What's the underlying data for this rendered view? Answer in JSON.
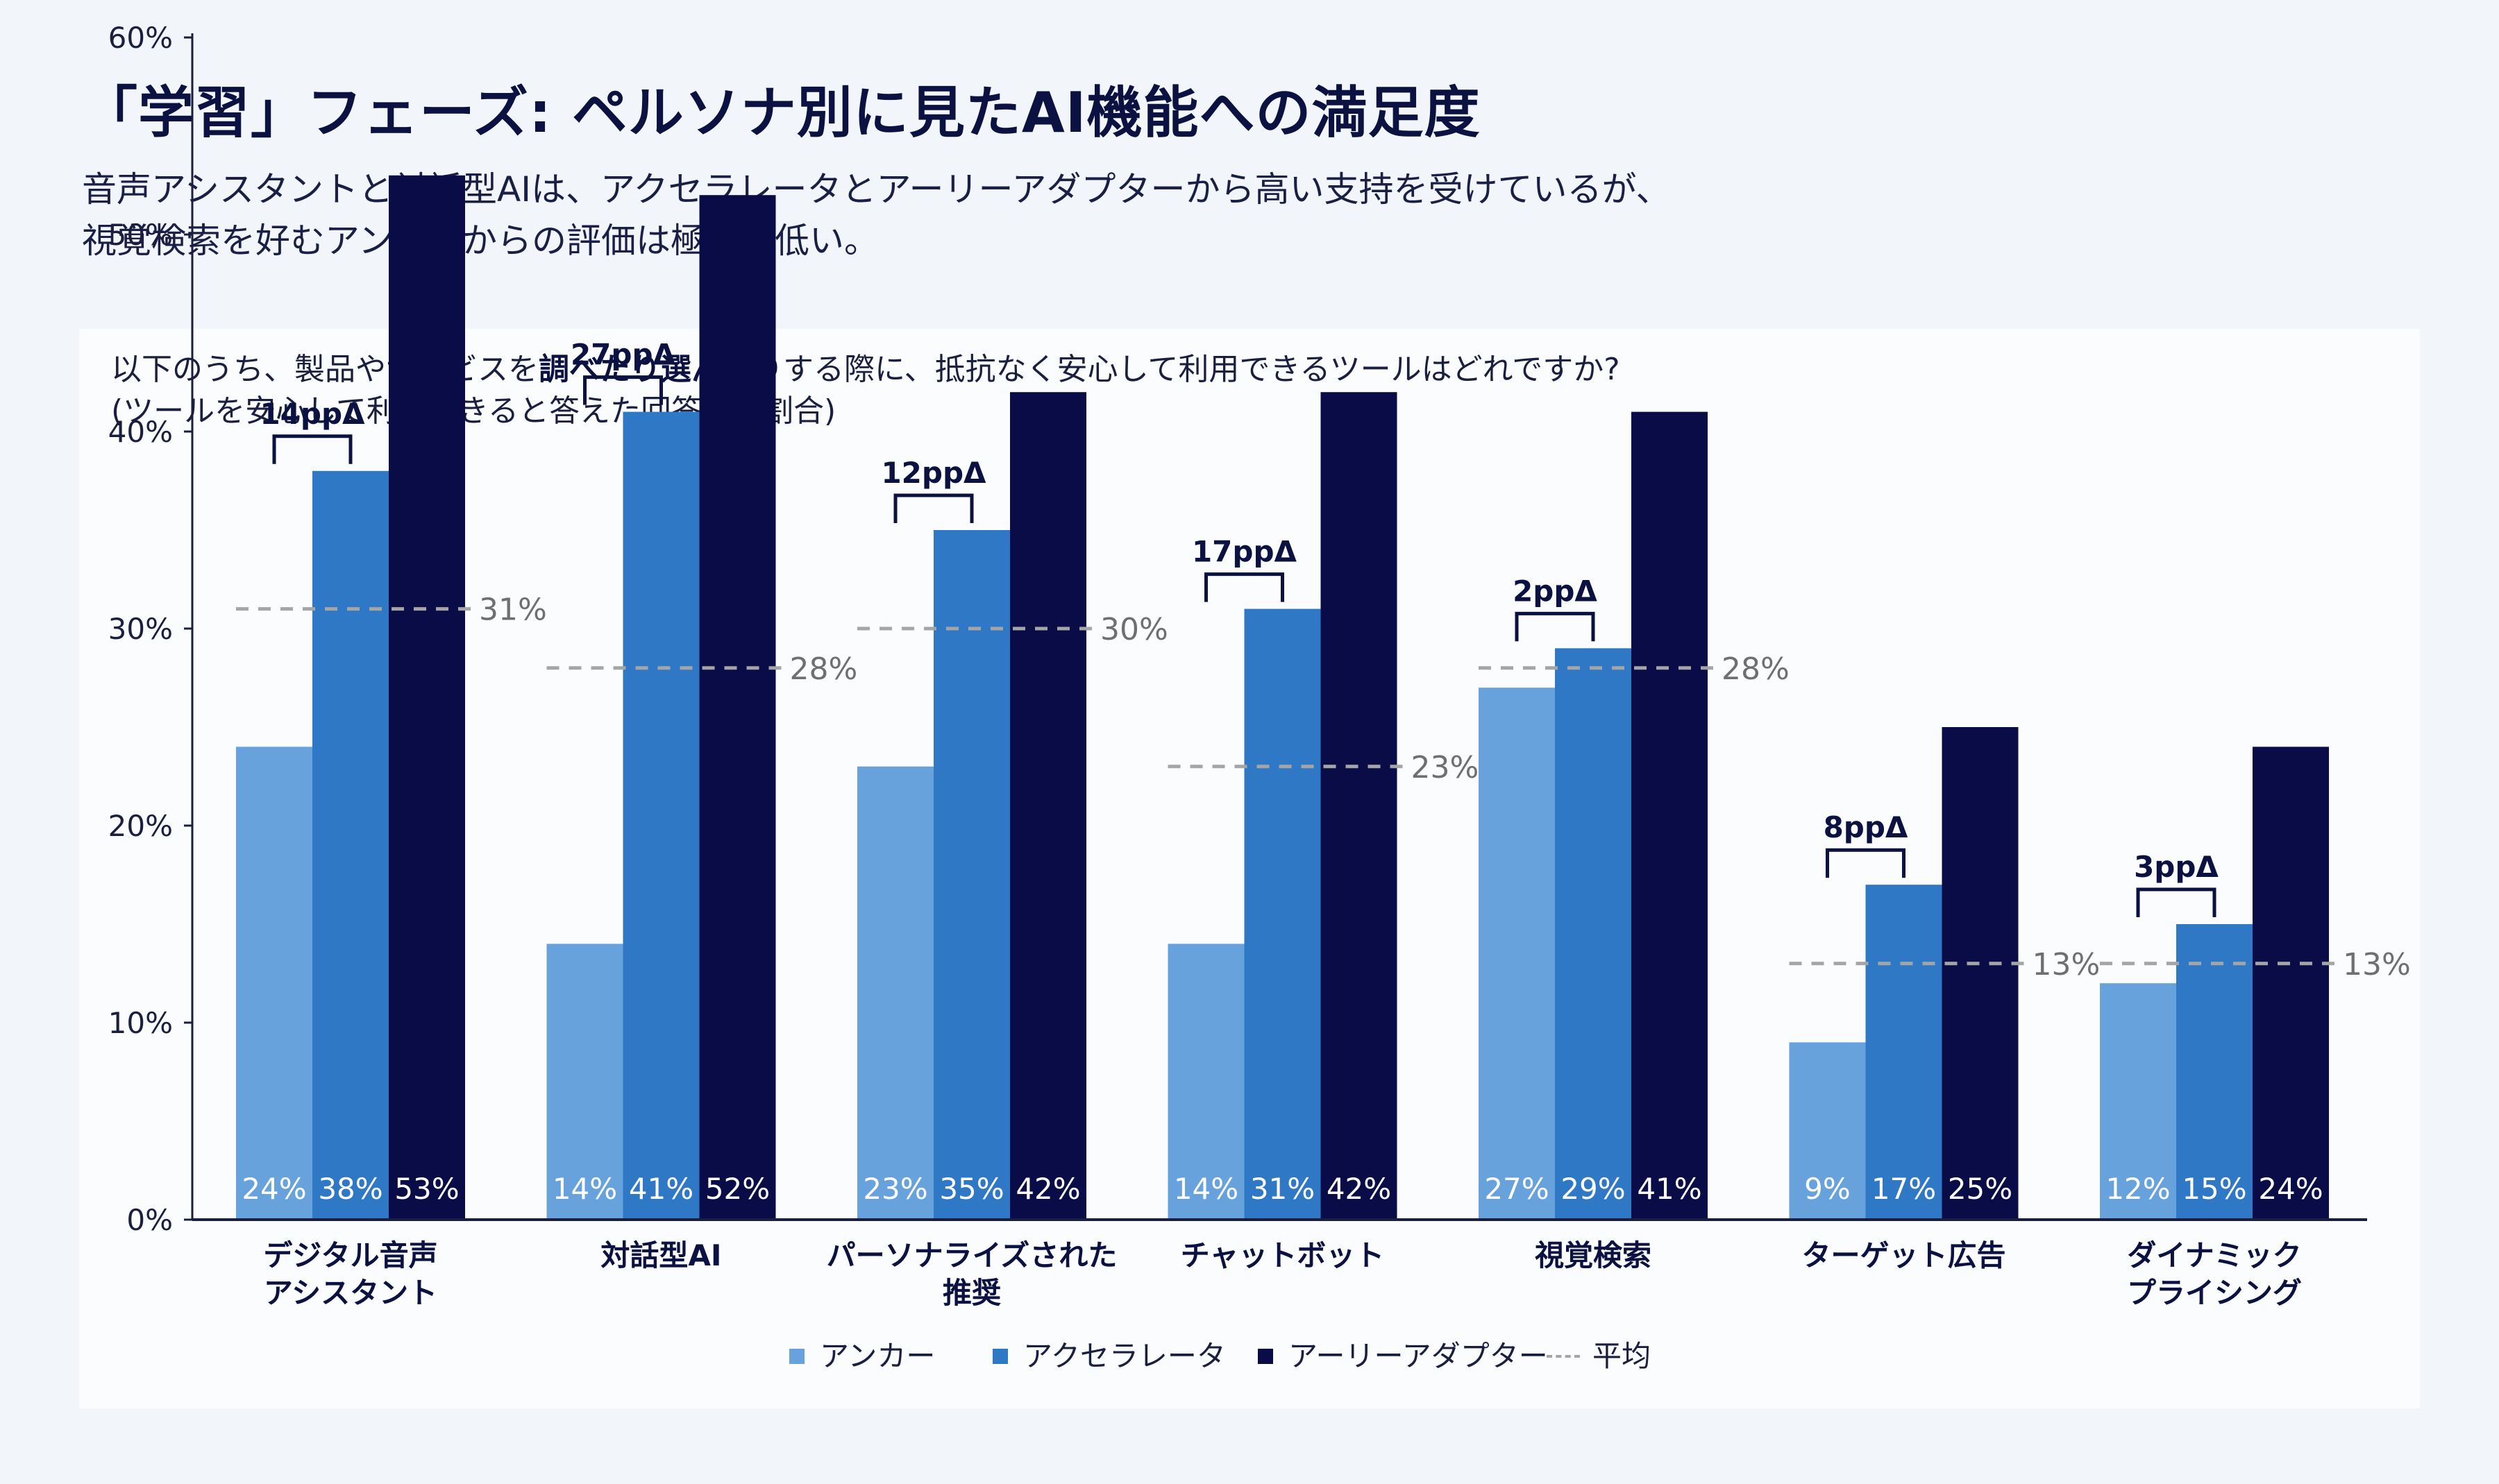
{
  "header": {
    "title": "「学習」フェーズ: ペルソナ別に見たAI機能への満足度",
    "subtitle_line1": "音声アシスタントと対話型AIは、アクセラレータとアーリーアダプターから高い支持を受けているが、",
    "subtitle_line2": "視覚検索を好むアンカーからの評価は極端に低い。"
  },
  "question": {
    "part1": "以下のうち、製品やサービスを",
    "bold": "調べたり選んだり",
    "part2": "する際に、抵抗なく安心して利用できるツールはどれですか?",
    "line2": "(ツールを安心して利用できると答えた回答者の割合)"
  },
  "legend": {
    "anchor": "アンカー",
    "accelerator": "アクセラレータ",
    "early_adopter": "アーリーアダプター",
    "average": "平均"
  },
  "colors": {
    "anchor": "#68a2dc",
    "accelerator": "#2f78c6",
    "early_adopter": "#0a0c48",
    "average": "#a5a5a5",
    "bracket": "#0b1140"
  },
  "chart_data": {
    "type": "bar",
    "categories": [
      [
        "デジタル音声",
        "アシスタント"
      ],
      [
        "対話型AI"
      ],
      [
        "パーソナライズされた",
        "推奨"
      ],
      [
        "チャットボット"
      ],
      [
        "視覚検索"
      ],
      [
        "ターゲット広告"
      ],
      [
        "ダイナミック",
        "プライシング"
      ]
    ],
    "series": [
      {
        "name": "アンカー",
        "values": [
          24,
          14,
          23,
          14,
          27,
          9,
          12
        ],
        "labels": [
          "24%",
          "14%",
          "23%",
          "14%",
          "27%",
          "9%",
          "12%"
        ]
      },
      {
        "name": "アクセラレータ",
        "values": [
          38,
          41,
          35,
          31,
          29,
          17,
          15
        ],
        "labels": [
          "38%",
          "41%",
          "35%",
          "31%",
          "29%",
          "17%",
          "15%"
        ]
      },
      {
        "name": "アーリーアダプター",
        "values": [
          53,
          52,
          42,
          42,
          41,
          25,
          24
        ],
        "labels": [
          "53%",
          "52%",
          "42%",
          "42%",
          "41%",
          "25%",
          "24%"
        ]
      }
    ],
    "average": {
      "name": "平均",
      "values": [
        31,
        28,
        30,
        23,
        28,
        13,
        13
      ],
      "labels": [
        "31%",
        "28%",
        "30%",
        "23%",
        "28%",
        "13%",
        "13%"
      ]
    },
    "gap_labels": [
      "14ppΔ",
      "27ppΔ",
      "12ppΔ",
      "17ppΔ",
      "2ppΔ",
      "8ppΔ",
      "3ppΔ"
    ],
    "y_ticks": [
      "0%",
      "10%",
      "20%",
      "30%",
      "40%",
      "50%",
      "60%"
    ],
    "ylim": [
      0,
      60
    ],
    "grid": false,
    "legend_position": "bottom-center"
  }
}
